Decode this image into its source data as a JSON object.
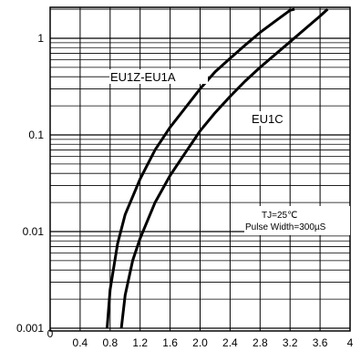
{
  "chart_data": {
    "type": "line",
    "xlim": [
      0,
      4
    ],
    "ylim": [
      0.001,
      2
    ],
    "yscale": "log",
    "grid": true,
    "x_ticks": [
      "0",
      "0.4",
      "0.8",
      "1.2",
      "1.6",
      "2.0",
      "2.4",
      "2.8",
      "3.2",
      "3.6",
      "4"
    ],
    "y_ticks": [
      {
        "value": 1,
        "label": "1"
      },
      {
        "value": 0.1,
        "label": "0.1"
      },
      {
        "value": 0.01,
        "label": "0.01"
      },
      {
        "value": 0.001,
        "label": "0.001"
      }
    ],
    "series": [
      {
        "name": "EU1Z-EU1A",
        "x": [
          0.76,
          0.8,
          0.9,
          1.0,
          1.2,
          1.4,
          1.6,
          1.8,
          2.0,
          2.2,
          2.4,
          2.6,
          2.8,
          3.0,
          3.2,
          3.26
        ],
        "y": [
          0.001,
          0.0025,
          0.0075,
          0.015,
          0.035,
          0.07,
          0.12,
          0.19,
          0.3,
          0.45,
          0.62,
          0.85,
          1.15,
          1.5,
          1.95,
          2.0
        ]
      },
      {
        "name": "EU1C",
        "x": [
          0.95,
          1.0,
          1.1,
          1.2,
          1.4,
          1.6,
          1.8,
          2.0,
          2.2,
          2.4,
          2.6,
          2.8,
          3.0,
          3.2,
          3.4,
          3.6,
          3.7
        ],
        "y": [
          0.001,
          0.0022,
          0.005,
          0.0085,
          0.02,
          0.038,
          0.065,
          0.11,
          0.17,
          0.25,
          0.36,
          0.5,
          0.68,
          0.92,
          1.25,
          1.7,
          2.0
        ]
      }
    ],
    "annotations": {
      "conditions_line1": "TJ=25℃",
      "conditions_line2": "Pulse Width=300µS"
    }
  }
}
